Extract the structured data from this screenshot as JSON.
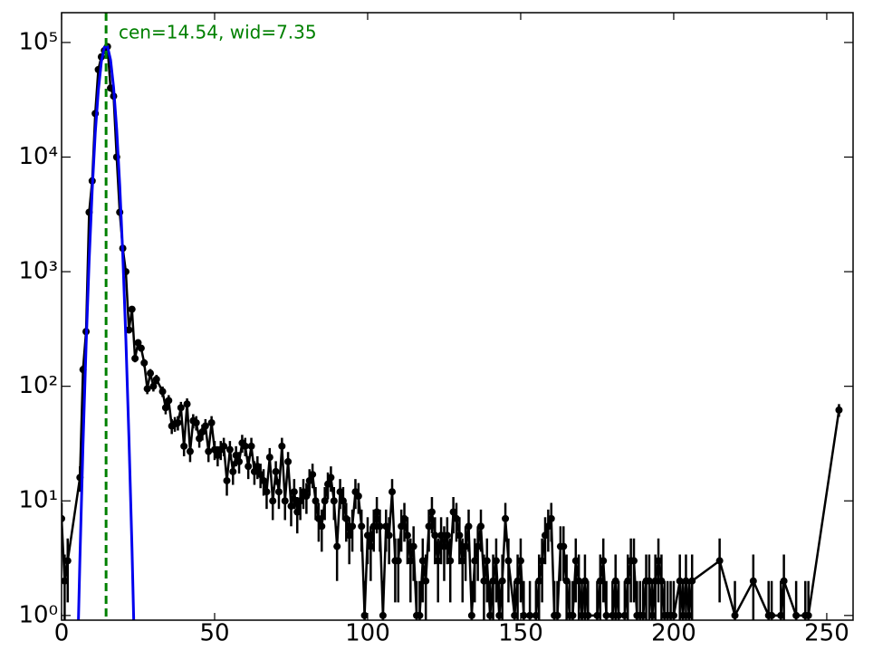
{
  "chart_data": {
    "type": "line",
    "annotation": "cen=14.54, wid=7.35",
    "vline": 14.54,
    "vline_color": "#008000",
    "log_y": true,
    "xlim": [
      0,
      258.6
    ],
    "ylim": [
      0.91,
      182000
    ],
    "xticks": [
      0,
      50,
      100,
      150,
      200,
      250
    ],
    "yticks": [
      {
        "value": 1,
        "label": "10⁰"
      },
      {
        "value": 10,
        "label": "10¹"
      },
      {
        "value": 100,
        "label": "10²"
      },
      {
        "value": 1000,
        "label": "10³"
      },
      {
        "value": 10000,
        "label": "10⁴"
      },
      {
        "value": 100000,
        "label": "10⁵"
      }
    ],
    "series": [
      {
        "color": "#000000",
        "x": [
          0,
          1,
          2,
          6,
          7,
          8,
          9,
          10,
          11,
          12,
          13,
          14,
          15,
          16,
          17,
          18,
          19,
          20,
          21,
          22,
          23,
          24,
          25,
          26,
          27,
          28,
          29,
          30,
          31,
          33,
          34,
          35,
          36,
          37,
          38,
          39,
          40,
          41,
          42,
          43,
          44,
          45,
          46,
          47,
          48,
          49,
          50,
          51,
          52,
          53,
          54,
          55,
          56,
          57,
          58,
          59,
          60,
          61,
          62,
          63,
          64,
          65,
          66,
          67,
          68,
          69,
          70,
          71,
          72,
          73,
          74,
          75,
          76,
          77,
          78,
          79,
          80,
          81,
          82,
          83,
          84,
          85,
          86,
          87,
          88,
          89,
          90,
          91,
          92,
          93,
          94,
          95,
          96,
          97,
          98,
          99,
          100,
          101,
          102,
          103,
          104,
          105,
          106,
          107,
          108,
          109,
          110,
          111,
          112,
          113,
          114,
          115,
          116,
          117,
          118,
          119,
          120,
          121,
          122,
          123,
          124,
          125,
          126,
          127,
          128,
          129,
          130,
          131,
          132,
          133,
          134,
          135,
          136,
          137,
          138,
          139,
          140,
          141,
          142,
          143,
          144,
          145,
          146,
          148,
          149,
          150,
          151,
          153,
          155,
          156,
          157,
          158,
          159,
          160,
          161,
          162,
          163,
          164,
          165,
          166,
          167,
          168,
          169,
          170,
          171,
          172,
          175,
          176,
          177,
          178,
          180,
          181,
          182,
          184,
          185,
          186,
          187,
          188,
          189,
          190,
          191,
          192,
          193,
          194,
          195,
          196,
          197,
          198,
          199,
          200,
          202,
          203,
          204,
          205,
          206,
          215,
          220,
          226,
          231,
          232,
          235,
          236,
          240,
          243,
          244,
          254
        ],
        "values": [
          7,
          2,
          3,
          16,
          140,
          300,
          3300,
          6200,
          24000,
          58000,
          75000,
          85000,
          92000,
          40000,
          34000,
          10000,
          3300,
          1600,
          1000,
          310,
          470,
          175,
          240,
          215,
          160,
          95,
          130,
          100,
          115,
          90,
          65,
          75,
          45,
          47,
          48,
          65,
          30,
          70,
          27,
          50,
          48,
          35,
          40,
          45,
          27,
          48,
          28,
          25,
          28,
          30,
          15,
          28,
          18,
          25,
          22,
          32,
          30,
          20,
          30,
          18,
          20,
          17,
          15,
          12,
          24,
          10,
          18,
          12,
          30,
          10,
          22,
          9,
          12,
          8,
          10,
          12,
          11,
          15,
          17,
          10,
          7,
          6,
          10,
          14,
          16,
          10,
          4,
          12,
          10,
          7,
          5,
          6,
          12,
          11,
          6,
          1,
          5,
          4,
          6,
          8,
          6,
          1,
          6,
          5,
          12,
          3,
          3,
          6,
          7,
          5,
          3,
          4,
          1,
          1,
          3,
          2,
          6,
          8,
          5,
          3,
          5,
          4,
          5,
          3,
          8,
          7,
          5,
          3,
          4,
          6,
          1,
          3,
          4,
          6,
          2,
          3,
          1,
          2,
          3,
          1,
          2,
          7,
          3,
          1,
          2,
          3,
          1,
          1,
          1,
          2,
          3,
          5,
          6,
          7,
          1,
          1,
          4,
          4,
          2,
          1,
          1,
          3,
          2,
          1,
          2,
          1,
          1,
          2,
          3,
          1,
          1,
          2,
          1,
          1,
          2,
          3,
          3,
          1,
          1,
          1,
          2,
          2,
          1,
          2,
          3,
          2,
          1,
          1,
          1,
          1,
          2,
          1,
          2,
          1,
          2,
          3,
          1,
          2,
          1,
          1,
          1,
          2,
          1,
          1,
          1,
          62
        ],
        "errors": [
          2.6,
          1.4,
          1.7,
          4,
          11.8,
          17.3,
          57,
          79,
          155,
          241,
          274,
          292,
          303,
          200,
          184,
          100,
          57,
          40,
          31.6,
          17.6,
          21.7,
          13.2,
          15.5,
          14.7,
          12.6,
          9.7,
          11.4,
          10,
          10.7,
          9.5,
          8.1,
          8.7,
          6.7,
          6.9,
          6.9,
          8.1,
          5.5,
          8.4,
          5.2,
          7.1,
          6.9,
          5.9,
          6.3,
          6.7,
          5.2,
          6.9,
          5.3,
          5,
          5.3,
          5.5,
          3.9,
          5.3,
          4.2,
          5,
          4.7,
          5.7,
          5.5,
          4.5,
          5.5,
          4.2,
          4.5,
          4.1,
          3.9,
          3.5,
          4.9,
          3.2,
          4.2,
          3.5,
          5.5,
          3.2,
          4.7,
          3,
          3.5,
          2.8,
          3.2,
          3.5,
          3.3,
          3.9,
          4.1,
          3.2,
          2.6,
          2.4,
          3.2,
          3.7,
          4,
          3.2,
          2,
          3.5,
          3.2,
          2.6,
          2.2,
          2.4,
          3.5,
          3.3,
          2.4,
          1,
          2.2,
          2,
          2.4,
          2.8,
          2.4,
          1,
          2.4,
          2.2,
          3.5,
          1.7,
          1.7,
          2.4,
          2.6,
          2.2,
          1.7,
          2,
          1,
          1,
          1.7,
          1.4,
          2.4,
          2.8,
          2.2,
          1.7,
          2.2,
          2,
          2.2,
          1.7,
          2.8,
          2.6,
          2.2,
          1.7,
          2,
          2.4,
          1,
          1.7,
          2,
          2.4,
          1.4,
          1.7,
          1,
          1.4,
          1.7,
          1,
          1.4,
          2.6,
          1.7,
          1,
          1.4,
          1.7,
          1,
          1,
          1,
          1.4,
          1.7,
          2.2,
          2.4,
          2.6,
          1,
          1,
          2,
          2,
          1.4,
          1,
          1,
          1.7,
          1.4,
          1,
          1.4,
          1,
          1,
          1.4,
          1.7,
          1,
          1,
          1.4,
          1,
          1,
          1.4,
          1.7,
          1.7,
          1,
          1,
          1,
          1.4,
          1.4,
          1,
          1.4,
          1.7,
          1.4,
          1,
          1,
          1,
          1,
          1.4,
          1,
          1.4,
          1,
          1.4,
          1.7,
          1,
          1.4,
          1,
          1,
          1,
          1.4,
          1,
          1,
          1,
          7.9
        ]
      },
      {
        "color": "#0000ee",
        "x": [
          5,
          6,
          7,
          8,
          9,
          10,
          11,
          12,
          13,
          14,
          15,
          16,
          17,
          18,
          19,
          20,
          21,
          22,
          23,
          24
        ],
        "values": [
          0.25,
          3.2,
          31,
          224,
          1240,
          5130,
          16200,
          38000,
          68000,
          91000,
          92000,
          70500,
          40400,
          17500,
          5700,
          1400,
          260,
          36,
          3.9,
          0.3
        ]
      }
    ]
  }
}
